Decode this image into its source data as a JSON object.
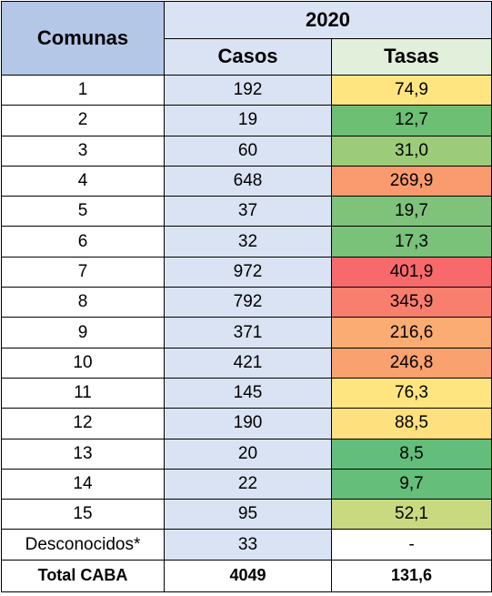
{
  "header": {
    "comunas_label": "Comunas",
    "year_label": "2020",
    "casos_label": "Casos",
    "tasas_label": "Tasas"
  },
  "rows": [
    {
      "comuna": "1",
      "casos": "192",
      "tasa": "74,9",
      "tasa_color": "#ffe57f"
    },
    {
      "comuna": "2",
      "casos": "19",
      "tasa": "12,7",
      "tasa_color": "#6cbf73"
    },
    {
      "comuna": "3",
      "casos": "60",
      "tasa": "31,0",
      "tasa_color": "#9ccc79"
    },
    {
      "comuna": "4",
      "casos": "648",
      "tasa": "269,9",
      "tasa_color": "#f99b6e"
    },
    {
      "comuna": "5",
      "casos": "37",
      "tasa": "19,7",
      "tasa_color": "#7fc37a"
    },
    {
      "comuna": "6",
      "casos": "32",
      "tasa": "17,3",
      "tasa_color": "#7ac279"
    },
    {
      "comuna": "7",
      "casos": "972",
      "tasa": "401,9",
      "tasa_color": "#f8696b"
    },
    {
      "comuna": "8",
      "casos": "792",
      "tasa": "345,9",
      "tasa_color": "#f87e6e"
    },
    {
      "comuna": "9",
      "casos": "371",
      "tasa": "216,6",
      "tasa_color": "#fbac72"
    },
    {
      "comuna": "10",
      "casos": "421",
      "tasa": "246,8",
      "tasa_color": "#f9a16f"
    },
    {
      "comuna": "11",
      "casos": "145",
      "tasa": "76,3",
      "tasa_color": "#ffe57f"
    },
    {
      "comuna": "12",
      "casos": "190",
      "tasa": "88,5",
      "tasa_color": "#ffe07e"
    },
    {
      "comuna": "13",
      "casos": "20",
      "tasa": "8,5",
      "tasa_color": "#63be7b"
    },
    {
      "comuna": "14",
      "casos": "22",
      "tasa": "9,7",
      "tasa_color": "#66be7b"
    },
    {
      "comuna": "15",
      "casos": "95",
      "tasa": "52,1",
      "tasa_color": "#c8d980"
    },
    {
      "comuna": "Desconocidos*",
      "casos": "33",
      "tasa": "-",
      "tasa_color": "#ffffff"
    }
  ],
  "total": {
    "label": "Total CABA",
    "casos": "4049",
    "tasa": "131,6"
  }
}
